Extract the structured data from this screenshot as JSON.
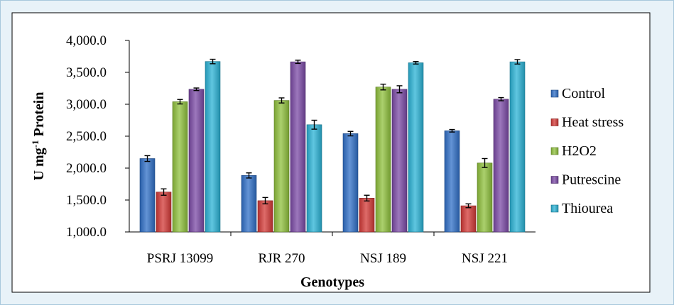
{
  "chart_data": {
    "type": "bar",
    "xlabel": "Genotypes",
    "ylabel_main": "U mg",
    "ylabel_sup": "-1",
    "ylabel_tail": " Protein",
    "categories": [
      "PSRJ 13099",
      "RJR 270",
      "NSJ 189",
      "NSJ 221"
    ],
    "ylim": [
      1000,
      4000
    ],
    "yticks": [
      1000,
      1500,
      2000,
      2500,
      3000,
      3500,
      4000
    ],
    "ytick_labels": [
      "1,000.0",
      "1,500.0",
      "2,000.0",
      "2,500.0",
      "3,000.0",
      "3,500.0",
      "4,000.0"
    ],
    "grid": false,
    "legend_position": "right",
    "series": [
      {
        "name": "Control",
        "color": "#2f6fc7",
        "values": [
          2150,
          1885,
          2540,
          2585
        ],
        "errors": [
          45,
          40,
          35,
          20
        ]
      },
      {
        "name": "Heat stress",
        "color": "#d33a37",
        "values": [
          1625,
          1490,
          1530,
          1410
        ],
        "errors": [
          50,
          50,
          45,
          30
        ]
      },
      {
        "name": "H2O2",
        "color": "#8fc03c",
        "values": [
          3040,
          3060,
          3270,
          2080
        ],
        "errors": [
          35,
          40,
          45,
          70
        ]
      },
      {
        "name": "Putrescine",
        "color": "#7b4aa6",
        "values": [
          3235,
          3665,
          3235,
          3080
        ],
        "errors": [
          20,
          25,
          55,
          25
        ]
      },
      {
        "name": "Thiourea",
        "color": "#2bb3d6",
        "values": [
          3670,
          2680,
          3650,
          3665
        ],
        "errors": [
          35,
          70,
          20,
          35
        ]
      }
    ]
  }
}
